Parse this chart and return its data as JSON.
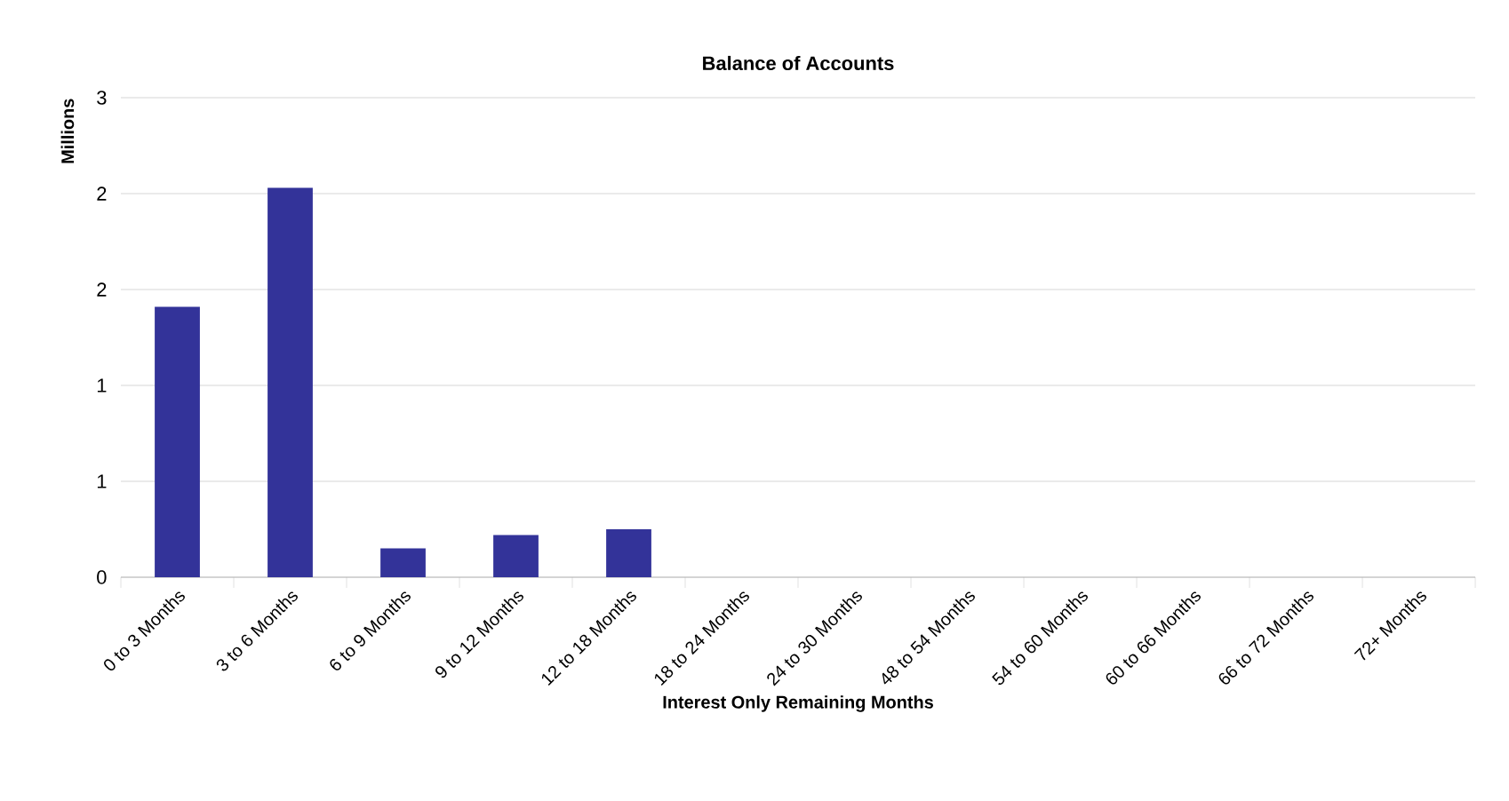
{
  "chart_data": {
    "type": "bar",
    "title": "Balance of Accounts",
    "xlabel": "Interest Only Remaining Months",
    "ylabel": "Millions",
    "categories": [
      "0 to 3 Months",
      "3 to 6 Months",
      "6 to 9 Months",
      "9 to 12 Months",
      "12 to 18 Months",
      "18 to 24 Months",
      "24 to 30 Months",
      "48 to 54 Months",
      "54 to 60 Months",
      "60 to 66 Months",
      "66 to 72 Months",
      "72+ Months"
    ],
    "values": [
      1.41,
      2.03,
      0.15,
      0.22,
      0.25,
      0,
      0,
      0,
      0,
      0,
      0,
      0
    ],
    "color": "#333399",
    "ylim": [
      0,
      2.5
    ],
    "yticks": [
      0,
      {
        "value": 0.5,
        "label": "1"
      },
      {
        "value": 1,
        "label": "1"
      },
      {
        "value": 1.5,
        "label": "2"
      },
      {
        "value": 2,
        "label": "2"
      },
      {
        "value": 2.5,
        "label": "3"
      }
    ],
    "grid": "y"
  }
}
